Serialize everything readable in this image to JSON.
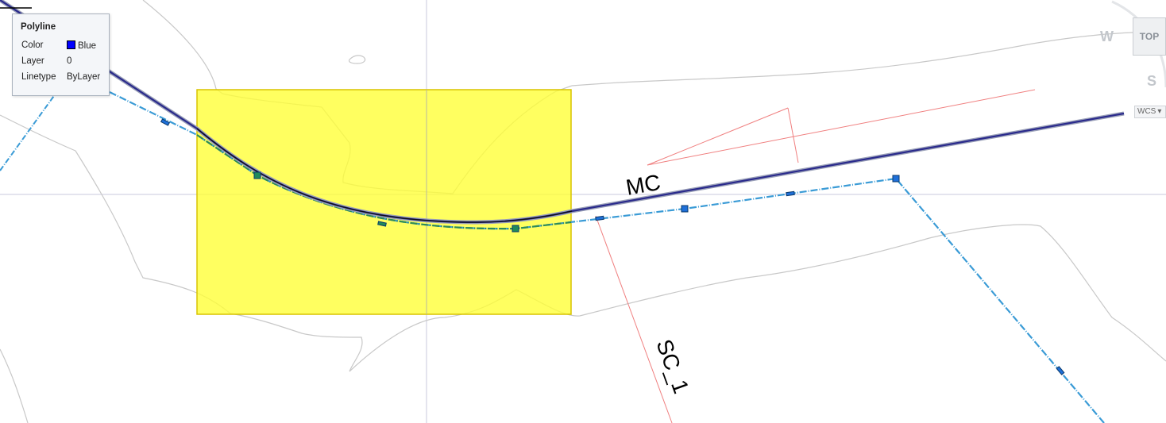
{
  "tooltip": {
    "title": "Polyline",
    "rows": [
      {
        "key": "Color",
        "value": "Blue"
      },
      {
        "key": "Layer",
        "value": "0"
      },
      {
        "key": "Linetype",
        "value": "ByLayer"
      }
    ],
    "color_swatch": "#0000ff"
  },
  "labels": {
    "mc": "MC",
    "sc": "SC_1"
  },
  "viewcube": {
    "face": "TOP",
    "compass_west": "W",
    "compass_south": "S",
    "ucs": "WCS"
  },
  "colors": {
    "selection_window": "#ffff33",
    "polyline_highlight": "#2a2a8c",
    "dashed_line": "#3a9bd6",
    "red_line": "#f08080",
    "contour": "#c8c8c8",
    "grip_blue": "#1e6fd9",
    "grip_green": "#1f8a5a"
  }
}
